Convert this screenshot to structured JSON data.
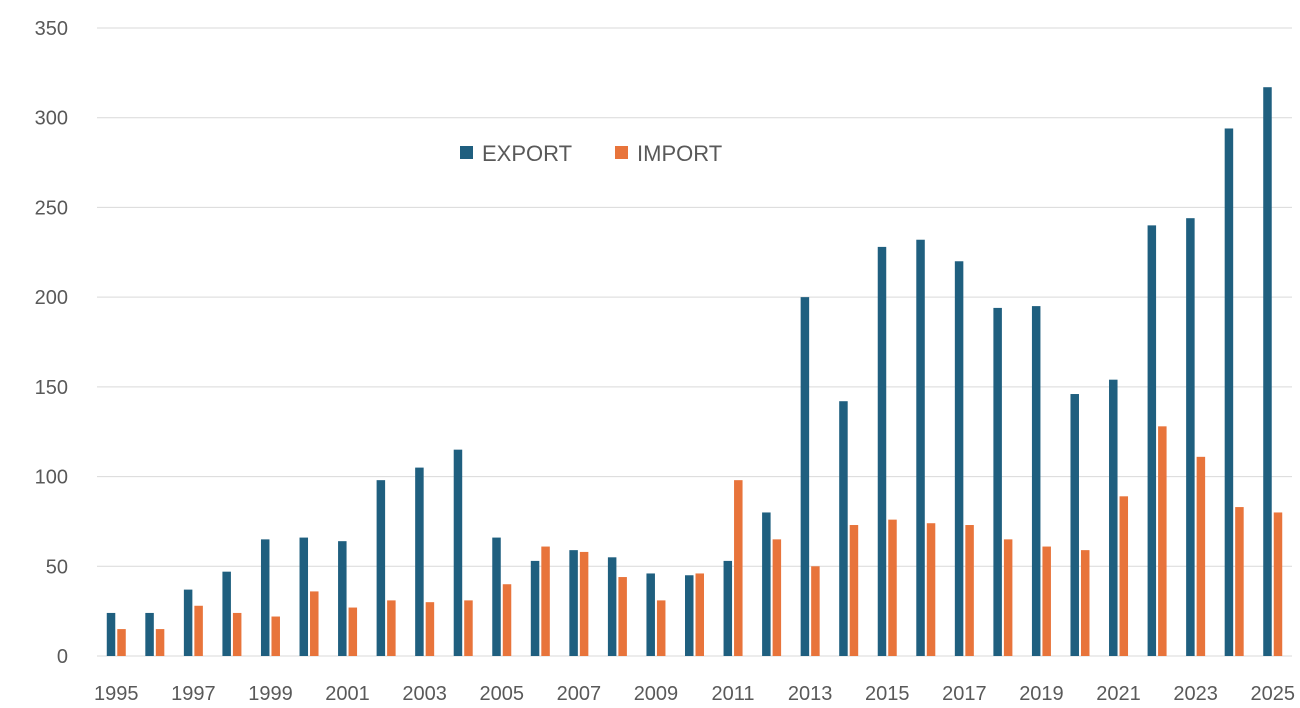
{
  "chart_data": {
    "type": "bar",
    "title": "",
    "xlabel": "",
    "ylabel": "",
    "ylim": [
      0,
      350
    ],
    "yticks": [
      0,
      50,
      100,
      150,
      200,
      250,
      300,
      350
    ],
    "grid": true,
    "legend_position": "top-center",
    "categories": [
      "1995",
      "1996",
      "1997",
      "1998",
      "1999",
      "2000",
      "2001",
      "2002",
      "2003",
      "2004",
      "2005",
      "2006",
      "2007",
      "2008",
      "2009",
      "2010",
      "2011",
      "2012",
      "2013",
      "2014",
      "2015",
      "2016",
      "2017",
      "2018",
      "2019",
      "2020",
      "2021",
      "2022",
      "2023",
      "2024",
      "2025"
    ],
    "x_tick_labels": [
      "1995",
      "1997",
      "1999",
      "2001",
      "2003",
      "2005",
      "2007",
      "2009",
      "2011",
      "2013",
      "2015",
      "2017",
      "2019",
      "2021",
      "2023",
      "2025"
    ],
    "series": [
      {
        "name": "EXPORT",
        "color": "#1f5f7f",
        "values": [
          24,
          24,
          37,
          47,
          65,
          66,
          64,
          98,
          105,
          115,
          66,
          53,
          59,
          55,
          46,
          45,
          53,
          80,
          200,
          142,
          228,
          232,
          220,
          194,
          195,
          146,
          154,
          240,
          244,
          294,
          317
        ]
      },
      {
        "name": "IMPORT",
        "color": "#e8743b",
        "values": [
          15,
          15,
          28,
          24,
          22,
          36,
          27,
          31,
          30,
          31,
          40,
          61,
          58,
          44,
          31,
          46,
          98,
          65,
          50,
          73,
          76,
          74,
          73,
          65,
          61,
          59,
          89,
          128,
          111,
          83,
          80
        ]
      }
    ]
  }
}
